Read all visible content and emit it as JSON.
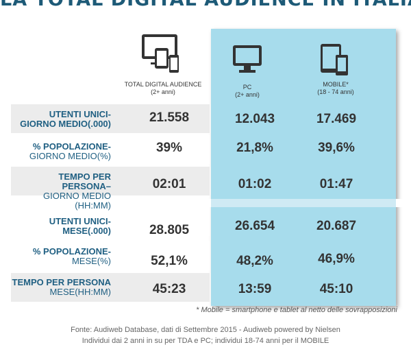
{
  "title": "LA TOTAL DIGITAL AUDIENCE IN ITALIA",
  "chart_data": {
    "type": "table",
    "columns": [
      {
        "name": "TOTAL DIGITAL AUDIENCE",
        "sub": "(2+ anni)",
        "icon": "devices-icon"
      },
      {
        "name": "PC",
        "sub": "(2+ anni)",
        "icon": "monitor-icon"
      },
      {
        "name": "MOBILE*",
        "sub": "(18 - 74 anni)",
        "icon": "mobile-devices-icon"
      }
    ],
    "rows": [
      {
        "label_a": "UTENTI UNICI-",
        "label_b": "GIORNO MEDIO(.000)",
        "values": [
          "21.558",
          "12.043",
          "17.469"
        ]
      },
      {
        "label_a": "% POPOLAZIONE-",
        "label_b": "GIORNO MEDIO(%)",
        "values": [
          "39%",
          "21,8%",
          "39,6%"
        ]
      },
      {
        "label_a": "TEMPO PER PERSONA–",
        "label_b": "GIORNO MEDIO (HH:MM)",
        "values": [
          "02:01",
          "01:02",
          "01:47"
        ]
      },
      {
        "label_a": "UTENTI UNICI-",
        "label_b": "MESE(.000)",
        "values": [
          "28.805",
          "26.654",
          "20.687"
        ]
      },
      {
        "label_a": "% POPOLAZIONE-",
        "label_b": "MESE(%)",
        "values": [
          "52,1%",
          "48,2%",
          "46,9%"
        ]
      },
      {
        "label_a": "TEMPO PER PERSONA",
        "label_b": "MESE(HH:MM)",
        "values": [
          "45:23",
          "13:59",
          "45:10"
        ]
      }
    ]
  },
  "footnote": "* Mobile = smartphone e tablet al netto delle sovrapposizioni",
  "source_line1": "Fonte: Audiweb Database, dati di Settembre 2015 - Audiweb powered by Nielsen",
  "source_line2": "Individui dai 2 anni in su  per TDA e PC; individui 18-74 anni per il MOBILE",
  "colors": {
    "title": "#1d5a77",
    "label": "#1f5f82",
    "panel": "#a7dcec",
    "row_gray": "#ececec"
  }
}
